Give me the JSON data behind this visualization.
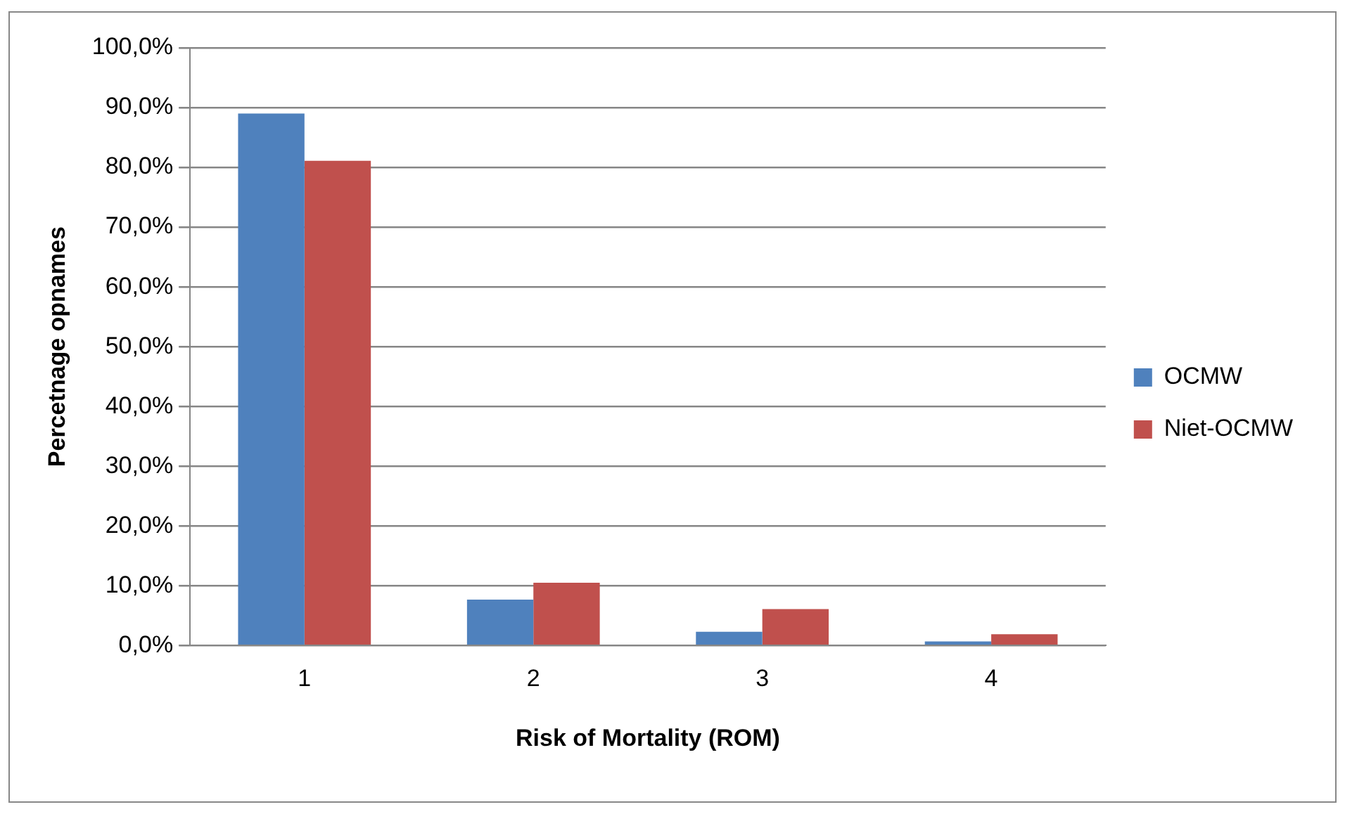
{
  "chart_data": {
    "type": "bar",
    "xlabel": "Risk of Mortality (ROM)",
    "ylabel": "Percetnage opnames",
    "categories": [
      "1",
      "2",
      "3",
      "4"
    ],
    "series": [
      {
        "name": "OCMW",
        "color": "#4f81bd",
        "values": [
          89.0,
          7.7,
          2.3,
          0.7
        ]
      },
      {
        "name": "Niet-OCMW",
        "color": "#c0504d",
        "values": [
          81.1,
          10.5,
          6.1,
          1.9
        ]
      }
    ],
    "ylim": [
      0,
      100
    ],
    "yticks": [
      {
        "value": 0,
        "label": "0,0%"
      },
      {
        "value": 10,
        "label": "10,0%"
      },
      {
        "value": 20,
        "label": "20,0%"
      },
      {
        "value": 30,
        "label": "30,0%"
      },
      {
        "value": 40,
        "label": "40,0%"
      },
      {
        "value": 50,
        "label": "50,0%"
      },
      {
        "value": 60,
        "label": "60,0%"
      },
      {
        "value": 70,
        "label": "70,0%"
      },
      {
        "value": 80,
        "label": "80,0%"
      },
      {
        "value": 90,
        "label": "90,0%"
      },
      {
        "value": 100,
        "label": "100,0%"
      }
    ],
    "grid": "y",
    "legend": "right"
  }
}
